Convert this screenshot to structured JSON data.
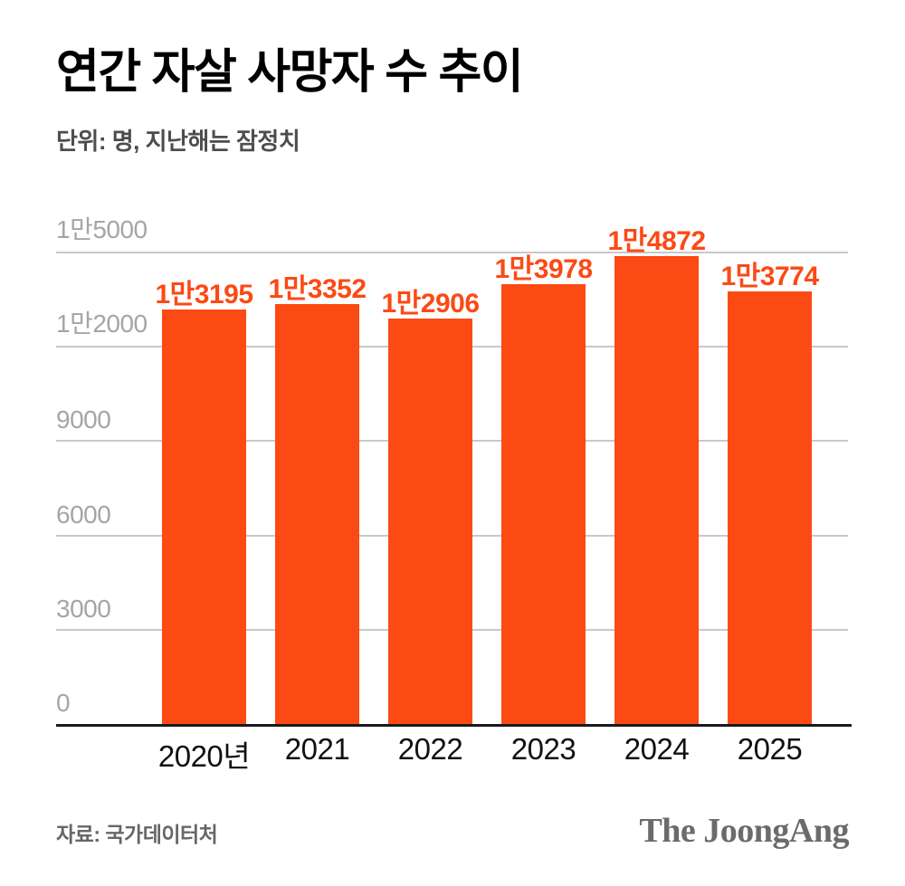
{
  "header": {
    "title": "연간 자살 사망자 수 추이",
    "subtitle": "단위: 명, 지난해는 잠정치"
  },
  "footer": {
    "source": "자료: 국가데이터처",
    "logo": "The JoongAng"
  },
  "colors": {
    "bar": "#fb4a14",
    "value_label": "#fb4a14",
    "gridline": "#c9c9c9",
    "tick_label": "#a5a5a5",
    "baseline": "#1a1a1a",
    "title": "#000000",
    "subtitle": "#4d4d4d",
    "footer_text": "#666666",
    "logo_text": "#6b6b6b"
  },
  "chart_data": {
    "type": "bar",
    "title": "연간 자살 사망자 수 추이",
    "subtitle": "단위: 명, 지난해는 잠정치",
    "categories": [
      "2020년",
      "2021",
      "2022",
      "2023",
      "2024",
      "2025"
    ],
    "values": [
      13195,
      13352,
      12906,
      13978,
      14872,
      13774
    ],
    "value_labels": [
      "1만3195",
      "1만3352",
      "1만2906",
      "1만3978",
      "1만4872",
      "1만3774"
    ],
    "bold_value_label_index": 5,
    "y_ticks": [
      {
        "value": 15000,
        "label": "1만5000"
      },
      {
        "value": 12000,
        "label": "1만2000"
      },
      {
        "value": 9000,
        "label": "9000"
      },
      {
        "value": 6000,
        "label": "6000"
      },
      {
        "value": 3000,
        "label": "3000"
      },
      {
        "value": 0,
        "label": "0"
      }
    ],
    "ylim": [
      0,
      15000
    ],
    "grid": true,
    "legend": false,
    "bar_color": "#fb4a14"
  }
}
